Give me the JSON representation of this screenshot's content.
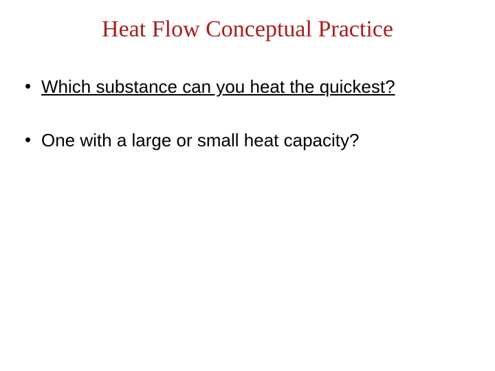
{
  "slide": {
    "title": "Heat Flow Conceptual Practice",
    "title_color": "#a81e1e",
    "title_fontsize": 34,
    "background_color": "#ffffff",
    "bullets": [
      {
        "text": "Which substance can you heat the quickest?",
        "underlined": true,
        "fontsize": 26,
        "color": "#000000"
      },
      {
        "text": "One with a large or small heat capacity?",
        "underlined": false,
        "fontsize": 26,
        "color": "#000000"
      }
    ]
  }
}
